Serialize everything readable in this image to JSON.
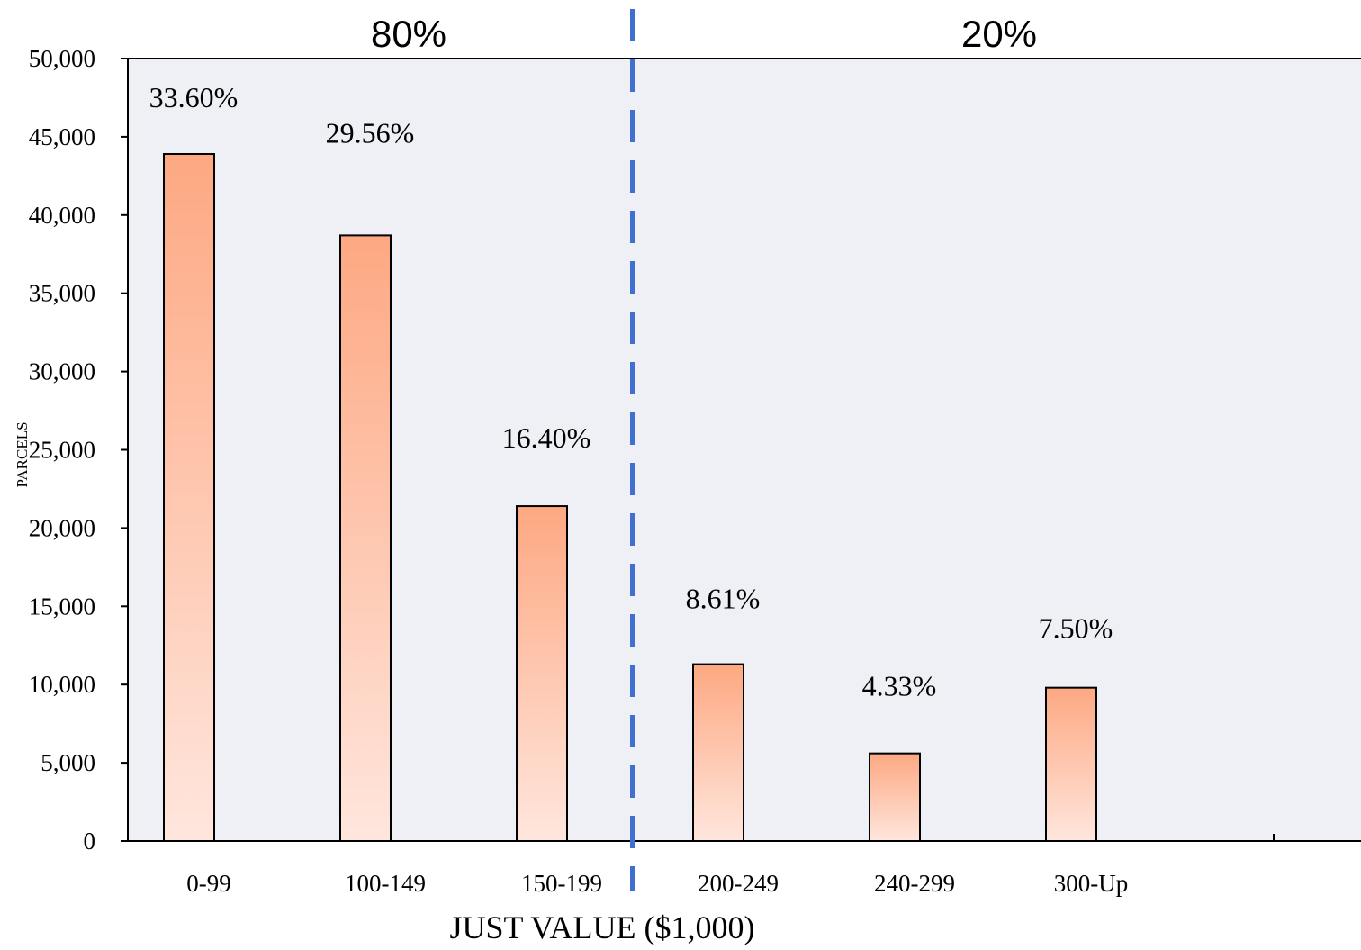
{
  "chart_data": {
    "type": "bar",
    "xlabel": "JUST VALUE ($1,000)",
    "ylabel": "PARCELS",
    "ylim": [
      0,
      50000
    ],
    "yticks": [
      0,
      5000,
      10000,
      15000,
      20000,
      25000,
      30000,
      35000,
      40000,
      45000,
      50000
    ],
    "ytick_labels": [
      "0",
      "5,000",
      "10,000",
      "15,000",
      "20,000",
      "25,000",
      "30,000",
      "35,000",
      "40,000",
      "45,000",
      "50,000"
    ],
    "categories": [
      "0-99",
      "100-149",
      "150-199",
      "200-249",
      "240-299",
      "300-Up"
    ],
    "values": [
      43900,
      38700,
      21400,
      11300,
      5600,
      9800
    ],
    "data_labels": [
      "33.60%",
      "29.56%",
      "16.40%",
      "8.61%",
      "4.33%",
      "7.50%"
    ],
    "divider_after_category": "150-199",
    "region_labels": [
      {
        "text": "80%",
        "side": "left"
      },
      {
        "text": "20%",
        "side": "right"
      }
    ],
    "grid": false,
    "colors": {
      "plot_background": "#eff0f5",
      "bar_top": "#fda882",
      "bar_bottom": "#ffe6dd",
      "bar_outline": "#000000",
      "divider": "#3f6fcf"
    }
  }
}
